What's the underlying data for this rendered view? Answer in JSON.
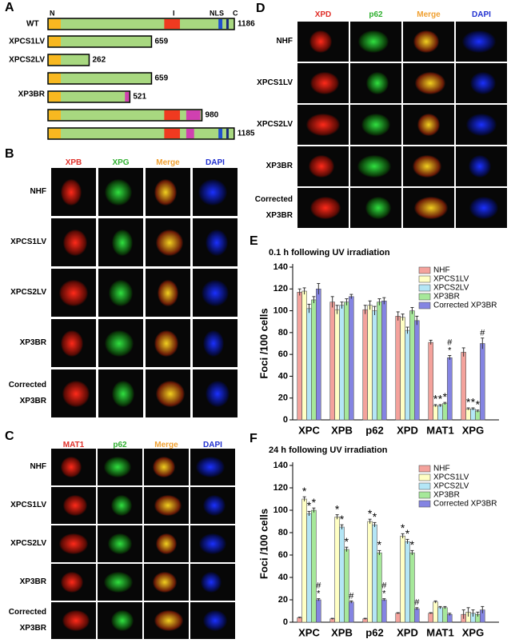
{
  "schematic": {
    "panel_label": "A",
    "domain_labels": [
      "N",
      "I",
      "NLS",
      "C"
    ],
    "rows": [
      {
        "name": "WT",
        "length": 1186
      },
      {
        "name": "XPCS1LV",
        "length": 659
      },
      {
        "name": "XPCS2LV",
        "length": 262
      },
      {
        "name": null,
        "length": 659
      },
      {
        "name": "XP3BR",
        "length": 521
      },
      {
        "name": null,
        "length": 980
      },
      {
        "name": null,
        "length": 1185
      }
    ]
  },
  "panel_b": {
    "panel_label": "B",
    "columns": [
      "XPB",
      "XPG",
      "Merge",
      "DAPI"
    ],
    "header_colors": [
      "#e0302a",
      "#30b030",
      "#f0a030",
      "#2030d0"
    ],
    "rows": [
      "NHF",
      "XPCS1LV",
      "XPCS2LV",
      "XP3BR",
      "Corrected XP3BR"
    ]
  },
  "panel_c": {
    "panel_label": "C",
    "columns": [
      "MAT1",
      "p62",
      "Merge",
      "DAPI"
    ],
    "header_colors": [
      "#e0302a",
      "#30b030",
      "#f0a030",
      "#2030d0"
    ],
    "rows": [
      "NHF",
      "XPCS1LV",
      "XPCS2LV",
      "XP3BR",
      "Corrected XP3BR"
    ]
  },
  "panel_d": {
    "panel_label": "D",
    "columns": [
      "XPD",
      "p62",
      "Merge",
      "DAPI"
    ],
    "header_colors": [
      "#e0302a",
      "#30b030",
      "#f0a030",
      "#2030d0"
    ],
    "rows": [
      "NHF",
      "XPCS1LV",
      "XPCS2LV",
      "XP3BR",
      "Corrected XP3BR"
    ]
  },
  "chart_data": [
    {
      "type": "bar",
      "panel_label": "E",
      "title": "0.1 h following UV irradiation",
      "y_label": "Foci /100 cells",
      "categories": [
        "XPC",
        "XPB",
        "p62",
        "XPD",
        "MAT1",
        "XPG"
      ],
      "ylim": [
        0,
        140
      ],
      "yticks": [
        0,
        20,
        40,
        60,
        80,
        100,
        120,
        140
      ],
      "legend": "upper right",
      "series": [
        {
          "name": "NHF",
          "color": "#f4a29c",
          "values": [
            117,
            108,
            101,
            95,
            71,
            62
          ],
          "errors": [
            3,
            5,
            4,
            4,
            2,
            4
          ],
          "markers": [
            null,
            null,
            null,
            null,
            null,
            null
          ]
        },
        {
          "name": "XPCS1LV",
          "color": "#ffffc4",
          "values": [
            118,
            101,
            105,
            94,
            13,
            10
          ],
          "errors": [
            3,
            4,
            4,
            3,
            1,
            1
          ],
          "markers": [
            null,
            null,
            null,
            null,
            "*",
            "*"
          ]
        },
        {
          "name": "XPCS2LV",
          "color": "#b4e6f6",
          "values": [
            102,
            105,
            100,
            82,
            13,
            10
          ],
          "errors": [
            4,
            3,
            4,
            3,
            1,
            1
          ],
          "markers": [
            null,
            null,
            null,
            null,
            "*",
            "*"
          ]
        },
        {
          "name": "XP3BR",
          "color": "#a6e89a",
          "values": [
            110,
            108,
            108,
            100,
            15,
            8
          ],
          "errors": [
            3,
            3,
            3,
            3,
            1,
            1
          ],
          "markers": [
            null,
            null,
            null,
            null,
            "*",
            "*"
          ]
        },
        {
          "name": "Corrected XP3BR",
          "color": "#8484e2",
          "values": [
            120,
            113,
            109,
            91,
            57,
            70
          ],
          "errors": [
            5,
            2,
            3,
            4,
            2,
            5
          ],
          "markers": [
            null,
            null,
            null,
            null,
            [
              "#",
              "*"
            ],
            [
              "#"
            ]
          ]
        }
      ]
    },
    {
      "type": "bar",
      "panel_label": "F",
      "title": "24 h following UV irradiation",
      "y_label": "Foci /100 cells",
      "categories": [
        "XPC",
        "XPB",
        "p62",
        "XPD",
        "MAT1",
        "XPG"
      ],
      "ylim": [
        0,
        140
      ],
      "yticks": [
        0,
        20,
        40,
        60,
        80,
        100,
        120,
        140
      ],
      "legend": "upper right",
      "series": [
        {
          "name": "NHF",
          "color": "#f4a29c",
          "values": [
            4,
            3,
            3,
            8,
            8,
            7
          ],
          "errors": [
            0.5,
            0.5,
            0.5,
            0.5,
            0.5,
            4
          ],
          "markers": [
            null,
            null,
            null,
            null,
            null,
            null
          ]
        },
        {
          "name": "XPCS1LV",
          "color": "#ffffc4",
          "values": [
            110,
            94,
            90,
            77,
            18,
            9
          ],
          "errors": [
            2,
            2,
            2,
            2,
            1,
            4
          ],
          "markers": [
            "*",
            "*",
            "*",
            "*",
            null,
            null
          ]
        },
        {
          "name": "XPCS2LV",
          "color": "#b4e6f6",
          "values": [
            97,
            85,
            87,
            72,
            13,
            8
          ],
          "errors": [
            2,
            2,
            2,
            2,
            1,
            3
          ],
          "markers": [
            "*",
            "*",
            "*",
            "*",
            null,
            null
          ]
        },
        {
          "name": "XP3BR",
          "color": "#a6e89a",
          "values": [
            100,
            65,
            62,
            62,
            13,
            7
          ],
          "errors": [
            2,
            2,
            2,
            2,
            1,
            2
          ],
          "markers": [
            "*",
            "*",
            "*",
            "*",
            null,
            null
          ]
        },
        {
          "name": "Corrected XP3BR",
          "color": "#8484e2",
          "values": [
            20,
            18,
            20,
            12,
            7,
            11
          ],
          "errors": [
            1,
            1,
            1,
            1,
            1,
            3
          ],
          "markers": [
            [
              "#",
              "*"
            ],
            [
              "#"
            ],
            [
              "#",
              "*"
            ],
            [
              "#"
            ],
            null,
            null
          ]
        }
      ]
    }
  ]
}
